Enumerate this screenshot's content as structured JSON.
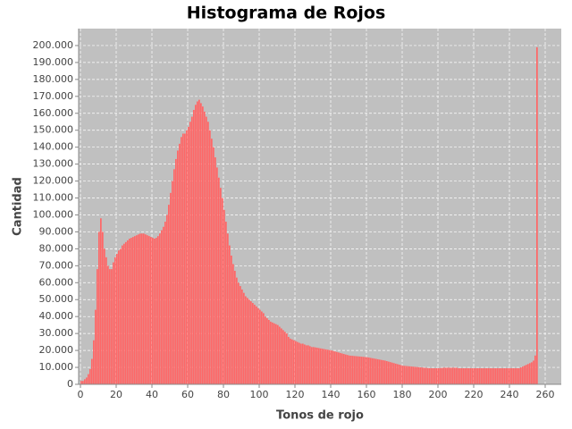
{
  "chart_data": {
    "type": "histogram",
    "title": "Histograma de Rojos",
    "x_label": "Tonos de rojo",
    "y_label": "Cantidad",
    "color": "#ff6666",
    "grid": true,
    "x": [
      0,
      1,
      2,
      3,
      4,
      5,
      6,
      7,
      8,
      9,
      10,
      11,
      12,
      13,
      14,
      15,
      16,
      17,
      18,
      19,
      20,
      21,
      22,
      23,
      24,
      25,
      26,
      27,
      28,
      29,
      30,
      31,
      32,
      33,
      34,
      35,
      36,
      37,
      38,
      39,
      40,
      41,
      42,
      43,
      44,
      45,
      46,
      47,
      48,
      49,
      50,
      51,
      52,
      53,
      54,
      55,
      56,
      57,
      58,
      59,
      60,
      61,
      62,
      63,
      64,
      65,
      66,
      67,
      68,
      69,
      70,
      71,
      72,
      73,
      74,
      75,
      76,
      77,
      78,
      79,
      80,
      81,
      82,
      83,
      84,
      85,
      86,
      87,
      88,
      89,
      90,
      91,
      92,
      93,
      94,
      95,
      96,
      97,
      98,
      99,
      100,
      101,
      102,
      103,
      104,
      105,
      106,
      107,
      108,
      109,
      110,
      111,
      112,
      113,
      114,
      115,
      116,
      117,
      118,
      119,
      120,
      121,
      122,
      123,
      124,
      125,
      126,
      127,
      128,
      129,
      130,
      131,
      132,
      133,
      134,
      135,
      136,
      137,
      138,
      139,
      140,
      141,
      142,
      143,
      144,
      145,
      146,
      147,
      148,
      149,
      150,
      151,
      152,
      153,
      154,
      155,
      156,
      157,
      158,
      159,
      160,
      161,
      162,
      163,
      164,
      165,
      166,
      167,
      168,
      169,
      170,
      171,
      172,
      173,
      174,
      175,
      176,
      177,
      178,
      179,
      180,
      181,
      182,
      183,
      184,
      185,
      186,
      187,
      188,
      189,
      190,
      191,
      192,
      193,
      194,
      195,
      196,
      197,
      198,
      199,
      200,
      201,
      202,
      203,
      204,
      205,
      206,
      207,
      208,
      209,
      210,
      211,
      212,
      213,
      214,
      215,
      216,
      217,
      218,
      219,
      220,
      221,
      222,
      223,
      224,
      225,
      226,
      227,
      228,
      229,
      230,
      231,
      232,
      233,
      234,
      235,
      236,
      237,
      238,
      239,
      240,
      241,
      242,
      243,
      244,
      245,
      246,
      247,
      248,
      249,
      250,
      251,
      252,
      253,
      254,
      255
    ],
    "values": [
      2000,
      2000,
      3000,
      4000,
      6000,
      9000,
      15000,
      26000,
      44000,
      68000,
      90000,
      98000,
      90000,
      80000,
      75000,
      70000,
      68000,
      68000,
      72000,
      75000,
      77000,
      79000,
      80000,
      82000,
      83000,
      84000,
      85000,
      86000,
      86500,
      87000,
      87500,
      88000,
      88500,
      89000,
      89000,
      89000,
      88500,
      88000,
      87500,
      87000,
      86500,
      86000,
      86500,
      87500,
      89000,
      91000,
      93000,
      96000,
      100000,
      106000,
      113000,
      120000,
      127000,
      133000,
      138000,
      142000,
      146000,
      148000,
      148000,
      150000,
      152000,
      155000,
      158000,
      162000,
      165000,
      167000,
      168000,
      166000,
      164000,
      161000,
      158000,
      155000,
      150000,
      145000,
      140000,
      134000,
      128000,
      122000,
      116000,
      110000,
      103000,
      96000,
      89000,
      82000,
      76000,
      71000,
      67000,
      63000,
      60000,
      58000,
      56000,
      54000,
      52000,
      51000,
      50000,
      49000,
      48000,
      47000,
      46000,
      45000,
      44000,
      43000,
      42000,
      40000,
      39000,
      38000,
      37000,
      36500,
      36000,
      35500,
      35000,
      34000,
      33000,
      32000,
      31000,
      30000,
      28000,
      27000,
      26500,
      26000,
      25500,
      25000,
      24500,
      24000,
      24000,
      23500,
      23000,
      23000,
      22500,
      22000,
      22000,
      21800,
      21600,
      21400,
      21200,
      21000,
      20800,
      20600,
      20400,
      20200,
      20000,
      19700,
      19400,
      19100,
      18800,
      18500,
      18200,
      17900,
      17600,
      17300,
      17000,
      16900,
      16800,
      16700,
      16600,
      16500,
      16400,
      16300,
      16200,
      16100,
      16000,
      15800,
      15600,
      15400,
      15200,
      15000,
      14800,
      14600,
      14400,
      14200,
      14000,
      13700,
      13400,
      13100,
      12800,
      12500,
      12200,
      11900,
      11600,
      11300,
      11000,
      10900,
      10800,
      10700,
      10600,
      10500,
      10400,
      10300,
      10200,
      10100,
      10000,
      9900,
      9800,
      9700,
      9600,
      9500,
      9500,
      9500,
      9500,
      9500,
      9500,
      9600,
      9700,
      9800,
      9800,
      9800,
      9800,
      9800,
      9800,
      9800,
      9800,
      9500,
      9500,
      9500,
      9500,
      9500,
      9500,
      9500,
      9500,
      9500,
      9500,
      9500,
      9500,
      9500,
      9500,
      9500,
      9500,
      9500,
      9500,
      9500,
      9500,
      9500,
      9500,
      9500,
      9500,
      9500,
      9500,
      9500,
      9500,
      9500,
      9500,
      9500,
      9500,
      9500,
      9500,
      9500,
      10000,
      10500,
      11000,
      11500,
      12000,
      12500,
      13000,
      14000,
      17000,
      199000
    ],
    "xlim": [
      -1,
      269
    ],
    "xticks": [
      0,
      20,
      40,
      60,
      80,
      100,
      120,
      140,
      160,
      180,
      200,
      220,
      240,
      260
    ],
    "ylim": [
      0,
      210000
    ],
    "yticks": [
      0,
      {
        "value": 10000,
        "label": "10.000"
      },
      {
        "value": 20000,
        "label": "20.000"
      },
      {
        "value": 30000,
        "label": "30.000"
      },
      {
        "value": 40000,
        "label": "40.000"
      },
      {
        "value": 50000,
        "label": "50.000"
      },
      {
        "value": 60000,
        "label": "60.000"
      },
      {
        "value": 70000,
        "label": "70.000"
      },
      {
        "value": 80000,
        "label": "80.000"
      },
      {
        "value": 90000,
        "label": "90.000"
      },
      {
        "value": 100000,
        "label": "100.000"
      },
      {
        "value": 110000,
        "label": "110.000"
      },
      {
        "value": 120000,
        "label": "120.000"
      },
      {
        "value": 130000,
        "label": "130.000"
      },
      {
        "value": 140000,
        "label": "140.000"
      },
      {
        "value": 150000,
        "label": "150.000"
      },
      {
        "value": 160000,
        "label": "160.000"
      },
      {
        "value": 170000,
        "label": "170.000"
      },
      {
        "value": 180000,
        "label": "180.000"
      },
      {
        "value": 190000,
        "label": "190.000"
      },
      {
        "value": 200000,
        "label": "200.000"
      }
    ]
  }
}
